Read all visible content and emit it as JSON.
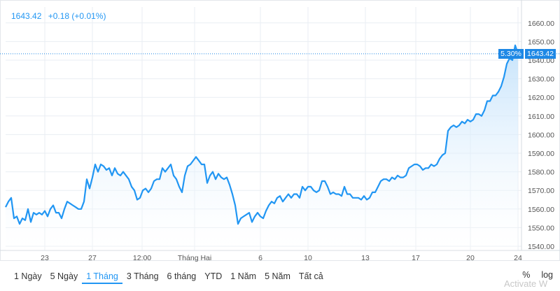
{
  "quote": {
    "price": "1643.42",
    "change": "+0.18 (+0.01%)"
  },
  "price_tag": {
    "percent": "5.30%",
    "value": "1643.42"
  },
  "ranges": [
    {
      "label": "1 Ngày",
      "active": false
    },
    {
      "label": "5 Ngày",
      "active": false
    },
    {
      "label": "1 Tháng",
      "active": true
    },
    {
      "label": "3 Tháng",
      "active": false
    },
    {
      "label": "6 tháng",
      "active": false
    },
    {
      "label": "YTD",
      "active": false
    },
    {
      "label": "1 Năm",
      "active": false
    },
    {
      "label": "5 Năm",
      "active": false
    },
    {
      "label": "Tất cả",
      "active": false
    }
  ],
  "controls": {
    "percent": "%",
    "log": "log"
  },
  "watermark": "Activate W",
  "colors": {
    "line": "#2196f3",
    "fill_top": "#bfe0fb",
    "grid": "#e9eef3",
    "axis_text": "#555555"
  },
  "chart_data": {
    "type": "area",
    "title": "",
    "xlabel": "",
    "ylabel": "",
    "ylim": [
      1536,
      1664
    ],
    "y_ticks": [
      1540,
      1550,
      1560,
      1570,
      1580,
      1590,
      1600,
      1610,
      1620,
      1630,
      1640,
      1650,
      1660
    ],
    "x_ticks": [
      {
        "label": "23",
        "x": 64
      },
      {
        "label": "27",
        "x": 132
      },
      {
        "label": "12:00",
        "x": 203
      },
      {
        "label": "Tháng Hai",
        "x": 278
      },
      {
        "label": "6",
        "x": 372
      },
      {
        "label": "10",
        "x": 440
      },
      {
        "label": "13",
        "x": 522
      },
      {
        "label": "17",
        "x": 594
      },
      {
        "label": "20",
        "x": 672
      },
      {
        "label": "24",
        "x": 740
      }
    ],
    "x_range": [
      8,
      744
    ],
    "reference_line": 1643.42,
    "points": [
      [
        8,
        1561
      ],
      [
        12,
        1564
      ],
      [
        16,
        1566
      ],
      [
        20,
        1555
      ],
      [
        24,
        1556
      ],
      [
        28,
        1552
      ],
      [
        32,
        1555
      ],
      [
        36,
        1554
      ],
      [
        40,
        1560
      ],
      [
        44,
        1553
      ],
      [
        48,
        1558
      ],
      [
        52,
        1557
      ],
      [
        56,
        1558
      ],
      [
        60,
        1557
      ],
      [
        64,
        1559
      ],
      [
        68,
        1556
      ],
      [
        72,
        1560
      ],
      [
        76,
        1562
      ],
      [
        80,
        1558
      ],
      [
        84,
        1558
      ],
      [
        88,
        1555
      ],
      [
        92,
        1560
      ],
      [
        96,
        1564
      ],
      [
        100,
        1563
      ],
      [
        104,
        1562
      ],
      [
        108,
        1561
      ],
      [
        112,
        1560
      ],
      [
        116,
        1560
      ],
      [
        120,
        1564
      ],
      [
        124,
        1576
      ],
      [
        128,
        1571
      ],
      [
        132,
        1577
      ],
      [
        136,
        1584
      ],
      [
        140,
        1580
      ],
      [
        144,
        1584
      ],
      [
        148,
        1583
      ],
      [
        152,
        1581
      ],
      [
        156,
        1582
      ],
      [
        160,
        1578
      ],
      [
        164,
        1582
      ],
      [
        168,
        1579
      ],
      [
        172,
        1578
      ],
      [
        176,
        1580
      ],
      [
        180,
        1578
      ],
      [
        184,
        1576
      ],
      [
        188,
        1572
      ],
      [
        192,
        1570
      ],
      [
        196,
        1565
      ],
      [
        200,
        1566
      ],
      [
        204,
        1570
      ],
      [
        208,
        1571
      ],
      [
        212,
        1569
      ],
      [
        216,
        1571
      ],
      [
        220,
        1575
      ],
      [
        224,
        1576
      ],
      [
        228,
        1576
      ],
      [
        232,
        1582
      ],
      [
        236,
        1580
      ],
      [
        240,
        1582
      ],
      [
        244,
        1584
      ],
      [
        248,
        1578
      ],
      [
        252,
        1576
      ],
      [
        256,
        1572
      ],
      [
        260,
        1569
      ],
      [
        264,
        1578
      ],
      [
        268,
        1583
      ],
      [
        272,
        1584
      ],
      [
        276,
        1586
      ],
      [
        280,
        1588
      ],
      [
        284,
        1586
      ],
      [
        288,
        1584
      ],
      [
        292,
        1584
      ],
      [
        296,
        1574
      ],
      [
        300,
        1578
      ],
      [
        304,
        1580
      ],
      [
        308,
        1576
      ],
      [
        312,
        1579
      ],
      [
        316,
        1577
      ],
      [
        320,
        1576
      ],
      [
        324,
        1577
      ],
      [
        328,
        1573
      ],
      [
        332,
        1568
      ],
      [
        336,
        1562
      ],
      [
        340,
        1552
      ],
      [
        344,
        1555
      ],
      [
        348,
        1556
      ],
      [
        352,
        1557
      ],
      [
        356,
        1558
      ],
      [
        360,
        1553
      ],
      [
        364,
        1556
      ],
      [
        368,
        1558
      ],
      [
        372,
        1556
      ],
      [
        376,
        1555
      ],
      [
        380,
        1559
      ],
      [
        384,
        1562
      ],
      [
        388,
        1564
      ],
      [
        392,
        1563
      ],
      [
        396,
        1566
      ],
      [
        400,
        1567
      ],
      [
        404,
        1564
      ],
      [
        408,
        1566
      ],
      [
        412,
        1568
      ],
      [
        416,
        1566
      ],
      [
        420,
        1568
      ],
      [
        424,
        1568
      ],
      [
        428,
        1566
      ],
      [
        432,
        1572
      ],
      [
        436,
        1570
      ],
      [
        440,
        1572
      ],
      [
        444,
        1572
      ],
      [
        448,
        1570
      ],
      [
        452,
        1569
      ],
      [
        456,
        1570
      ],
      [
        460,
        1575
      ],
      [
        464,
        1575
      ],
      [
        468,
        1572
      ],
      [
        472,
        1568
      ],
      [
        476,
        1569
      ],
      [
        480,
        1568
      ],
      [
        484,
        1568
      ],
      [
        488,
        1567
      ],
      [
        492,
        1572
      ],
      [
        496,
        1568
      ],
      [
        500,
        1568
      ],
      [
        504,
        1566
      ],
      [
        508,
        1566
      ],
      [
        512,
        1566
      ],
      [
        516,
        1565
      ],
      [
        520,
        1567
      ],
      [
        524,
        1565
      ],
      [
        528,
        1566
      ],
      [
        532,
        1569
      ],
      [
        536,
        1569
      ],
      [
        540,
        1572
      ],
      [
        544,
        1575
      ],
      [
        548,
        1576
      ],
      [
        552,
        1576
      ],
      [
        556,
        1575
      ],
      [
        560,
        1577
      ],
      [
        564,
        1576
      ],
      [
        568,
        1578
      ],
      [
        572,
        1577
      ],
      [
        576,
        1577
      ],
      [
        580,
        1578
      ],
      [
        584,
        1582
      ],
      [
        588,
        1583
      ],
      [
        592,
        1584
      ],
      [
        596,
        1584
      ],
      [
        600,
        1583
      ],
      [
        604,
        1581
      ],
      [
        608,
        1582
      ],
      [
        612,
        1582
      ],
      [
        616,
        1584
      ],
      [
        620,
        1583
      ],
      [
        624,
        1584
      ],
      [
        628,
        1587
      ],
      [
        632,
        1589
      ],
      [
        636,
        1590
      ],
      [
        640,
        1602
      ],
      [
        644,
        1604
      ],
      [
        648,
        1605
      ],
      [
        652,
        1604
      ],
      [
        656,
        1605
      ],
      [
        660,
        1607
      ],
      [
        664,
        1606
      ],
      [
        668,
        1608
      ],
      [
        672,
        1607
      ],
      [
        676,
        1608
      ],
      [
        680,
        1611
      ],
      [
        684,
        1611
      ],
      [
        688,
        1610
      ],
      [
        692,
        1613
      ],
      [
        696,
        1618
      ],
      [
        700,
        1618
      ],
      [
        704,
        1621
      ],
      [
        708,
        1621
      ],
      [
        712,
        1623
      ],
      [
        716,
        1626
      ],
      [
        720,
        1631
      ],
      [
        724,
        1638
      ],
      [
        728,
        1641
      ],
      [
        732,
        1640
      ],
      [
        736,
        1648
      ],
      [
        740,
        1643.42
      ]
    ]
  }
}
